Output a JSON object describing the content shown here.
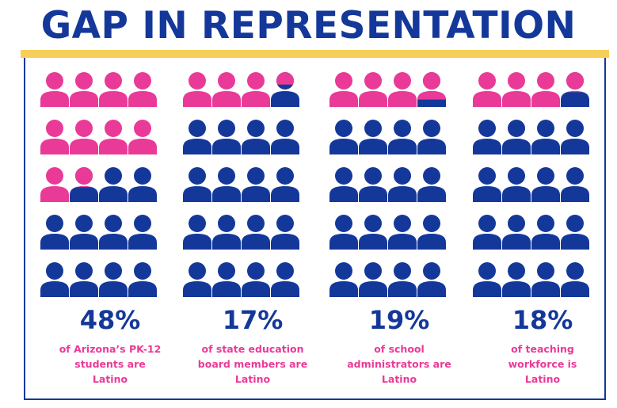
{
  "title": "GAP IN REPRESENTATION",
  "colors": {
    "title": "#14389a",
    "accent_bar": "#f6cf5a",
    "frame": "#14389a",
    "latino": "#ea3a98",
    "other": "#14389a",
    "percent_text": "#14389a",
    "desc_text": "#ea3a98"
  },
  "chart_data": {
    "type": "pictogram",
    "icons_per_panel": 20,
    "rows": 5,
    "columns": 4,
    "categories": [
      "of Arizona’s PK-12 students are Latino",
      "of state education board members are Latino",
      "of school administrators are Latino",
      "of teaching workforce is Latino"
    ],
    "values": [
      48,
      17,
      19,
      18
    ],
    "unit": "%",
    "panels": [
      {
        "value": 48,
        "value_label": "48%",
        "desc_lines": [
          "of Arizona’s PK-12",
          "students are",
          "Latino"
        ]
      },
      {
        "value": 17,
        "value_label": "17%",
        "desc_lines": [
          "of state education",
          "board members are",
          "Latino"
        ]
      },
      {
        "value": 19,
        "value_label": "19%",
        "desc_lines": [
          "of school",
          "administrators are",
          "Latino"
        ]
      },
      {
        "value": 18,
        "value_label": "18%",
        "desc_lines": [
          "of teaching",
          "workforce is",
          "Latino"
        ]
      }
    ]
  }
}
